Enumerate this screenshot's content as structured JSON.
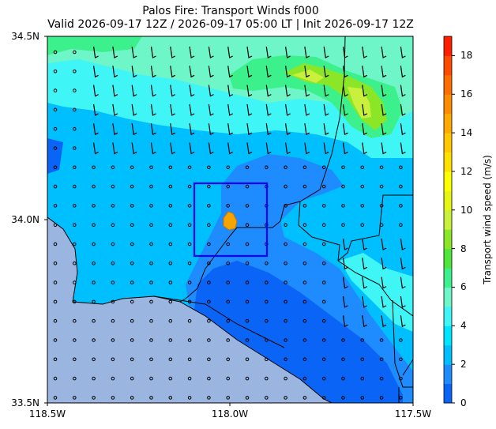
{
  "title_line1": "Palos Fire: Transport Winds f000",
  "title_line2": "Valid 2026-09-17 12Z / 2026-09-17 05:00 LT | Init 2026-09-17 12Z",
  "axes": {
    "lat_labels": [
      "34.5N",
      "34.0N",
      "33.5N"
    ],
    "lon_labels": [
      "118.5W",
      "118.0W",
      "117.5W"
    ],
    "lat_range": [
      33.5,
      34.5
    ],
    "lon_range": [
      -118.5,
      -117.5
    ]
  },
  "colorbar": {
    "label": "Transport wind speed (m/s)",
    "ticks": [
      "0",
      "2",
      "4",
      "6",
      "8",
      "10",
      "12",
      "14",
      "16",
      "18"
    ],
    "range": [
      0,
      19
    ],
    "colors": [
      "#0a64f5",
      "#1e8cff",
      "#00bfff",
      "#00e5ff",
      "#40f5f5",
      "#6ef5c8",
      "#3cf08c",
      "#50e63c",
      "#8ce628",
      "#c8f03c",
      "#e6f514",
      "#ffff00",
      "#ffe100",
      "#ffc800",
      "#ffaa00",
      "#ff8c00",
      "#ff6e00",
      "#ff4b00",
      "#ff1e00"
    ]
  },
  "map": {
    "ocean_color": "#9ab5e0",
    "fire_color": "#f5a400",
    "box_color": "#0000ff",
    "box_bounds": {
      "lon": [
        -118.1,
        -117.9
      ],
      "lat": [
        33.9,
        34.1
      ]
    },
    "fire_location": {
      "lon": -118.0,
      "lat": 33.99
    }
  }
}
